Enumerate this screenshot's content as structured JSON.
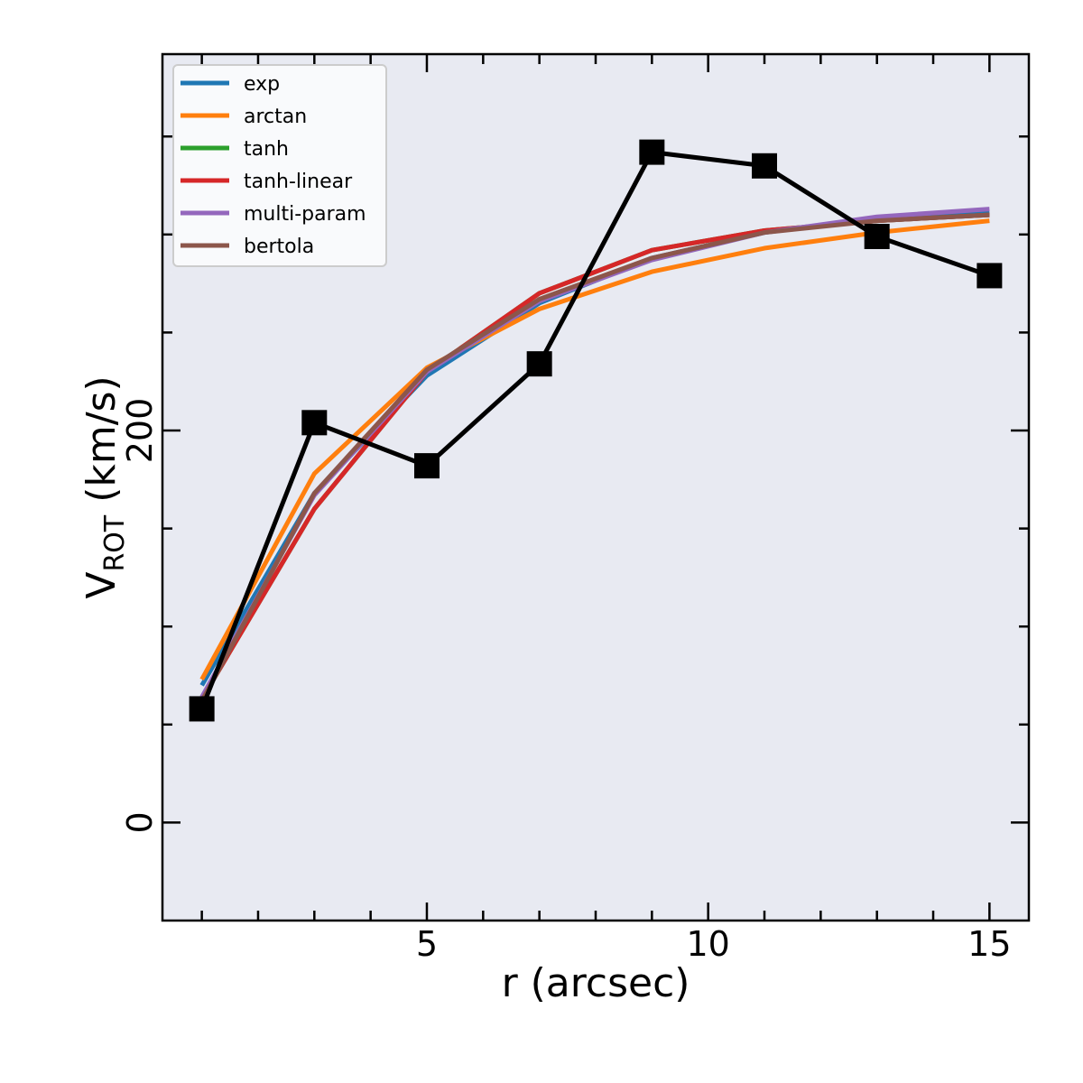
{
  "chart_data": {
    "type": "line",
    "xlabel": "r (arcsec)",
    "ylabel_main": "V",
    "ylabel_sub": "ROT",
    "ylabel_unit": "(km/s)",
    "xlim": [
      0.3,
      15.7
    ],
    "ylim": [
      -50,
      392
    ],
    "xticks_major": [
      5,
      10,
      15
    ],
    "xticks_minor": [
      1,
      2,
      3,
      4,
      6,
      7,
      8,
      9,
      11,
      12,
      13,
      14
    ],
    "xtick_labels": [
      "5",
      "10",
      "15"
    ],
    "yticks_major": [
      0,
      200
    ],
    "yticks_minor": [
      50,
      100,
      150,
      250,
      300,
      350
    ],
    "ytick_labels": [
      "0",
      "200"
    ],
    "grid": false,
    "background": "#e8eaf2",
    "legend_position": "top-left",
    "x": [
      1,
      3,
      5,
      7,
      9,
      11,
      13,
      15
    ],
    "observed": {
      "color": "#000000",
      "values": [
        58,
        204,
        182,
        234,
        342,
        335,
        299,
        279
      ]
    },
    "series": [
      {
        "name": "exp",
        "color": "#1f77b4",
        "values": [
          70,
          168,
          228,
          265,
          288,
          301,
          308,
          311
        ]
      },
      {
        "name": "arctan",
        "color": "#ff7f0e",
        "values": [
          73,
          178,
          232,
          262,
          281,
          293,
          301,
          307
        ]
      },
      {
        "name": "tanh",
        "color": "#2ca02c",
        "values": [
          63,
          160,
          230,
          270,
          292,
          302,
          307,
          310
        ]
      },
      {
        "name": "tanh-linear",
        "color": "#d62728",
        "values": [
          63,
          160,
          230,
          270,
          292,
          302,
          307,
          310
        ]
      },
      {
        "name": "multi-param",
        "color": "#9467bd",
        "values": [
          64,
          167,
          230,
          266,
          287,
          301,
          309,
          313
        ]
      },
      {
        "name": "bertola",
        "color": "#8c564b",
        "values": [
          62,
          168,
          231,
          267,
          288,
          301,
          307,
          310
        ]
      }
    ]
  }
}
